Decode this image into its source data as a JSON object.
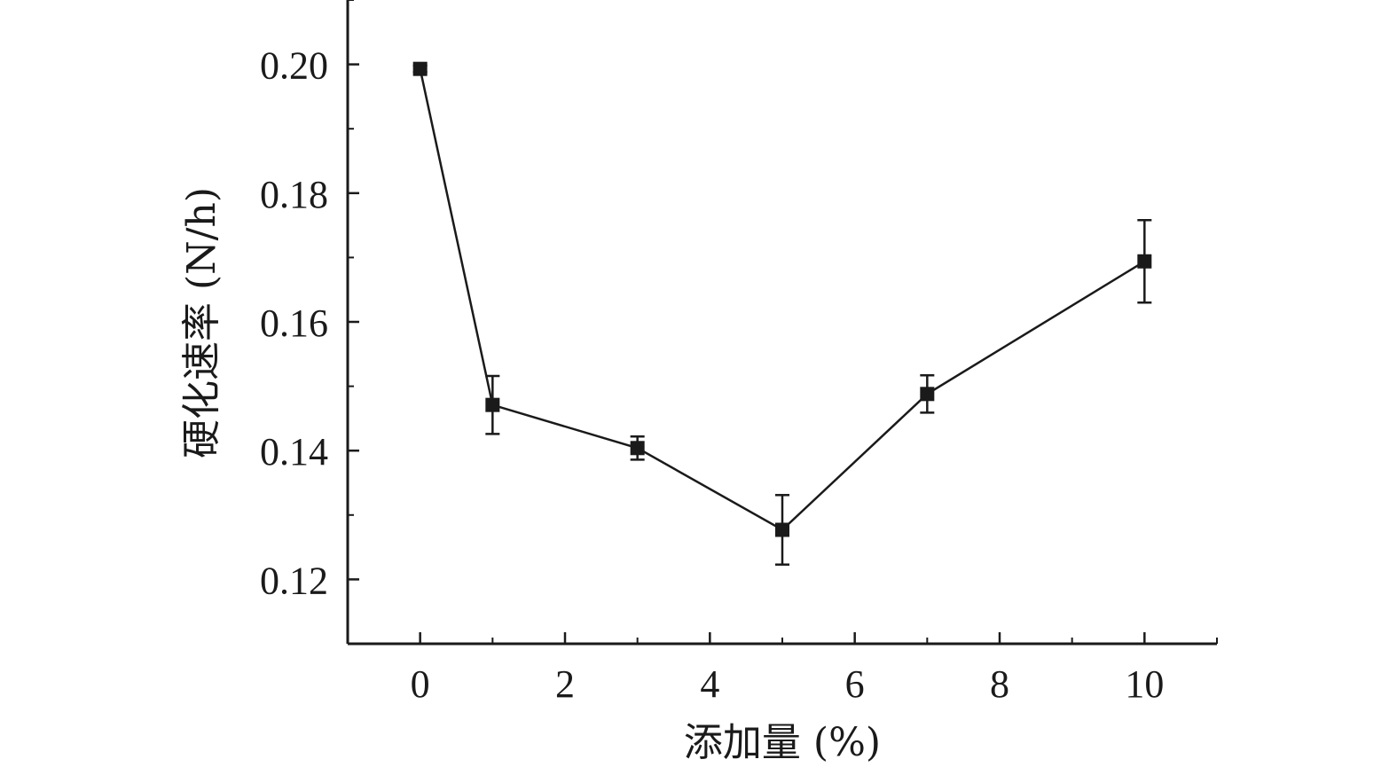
{
  "chart_data": {
    "type": "line",
    "title": "",
    "xlabel": "添加量 (%)",
    "ylabel": "硬化速率 (N/h)",
    "xlim": [
      -1,
      11
    ],
    "ylim": [
      0.11,
      0.21
    ],
    "x_ticks": [
      0,
      2,
      4,
      6,
      8,
      10
    ],
    "x_tick_labels": [
      "0",
      "2",
      "4",
      "6",
      "8",
      "10"
    ],
    "y_ticks": [
      0.12,
      0.14,
      0.16,
      0.18,
      0.2
    ],
    "y_tick_labels": [
      "0.12",
      "0.14",
      "0.16",
      "0.18",
      "0.20"
    ],
    "grid": false,
    "legend": "none",
    "marker": "square",
    "series": [
      {
        "color": "#1a1a1a",
        "x": [
          0,
          1,
          3,
          5,
          7,
          10
        ],
        "y": [
          0.1993,
          0.1471,
          0.1404,
          0.1277,
          0.1488,
          0.1694
        ],
        "error": [
          0.0005,
          0.0045,
          0.0018,
          0.0054,
          0.0029,
          0.0064
        ]
      }
    ]
  }
}
